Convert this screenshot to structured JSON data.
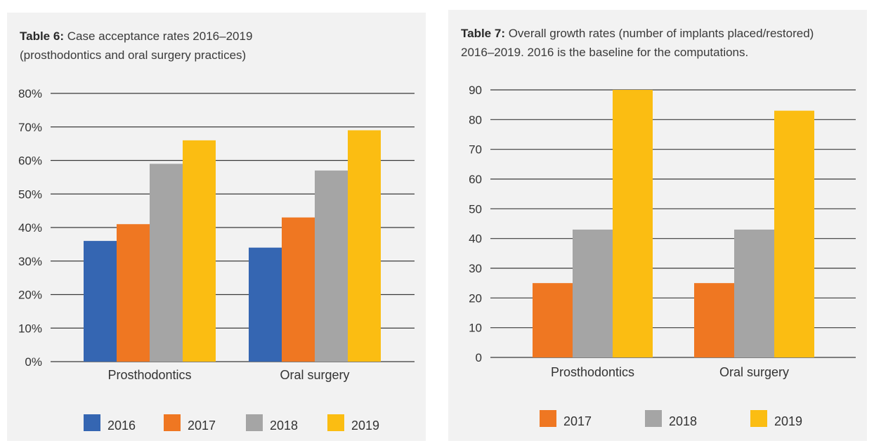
{
  "tables": [
    {
      "caption_bold": "Table 6:",
      "caption_line1": " Case acceptance rates 2016–2019",
      "caption_line2": "(prosthodontics and oral surgery practices)"
    },
    {
      "caption_bold": "Table 7:",
      "caption_line1": " Overall growth rates (number of implants placed/restored)",
      "caption_line2": "2016–2019. 2016 is the baseline for the computations."
    }
  ],
  "chart_data": [
    {
      "type": "bar",
      "title": "Table 6: Case acceptance rates 2016–2019 (prosthodontics and oral surgery practices)",
      "categories": [
        "Prosthodontics",
        "Oral surgery"
      ],
      "series": [
        {
          "name": "2016",
          "color": "#3566b2",
          "values": [
            36,
            34
          ]
        },
        {
          "name": "2017",
          "color": "#ef7722",
          "values": [
            41,
            43
          ]
        },
        {
          "name": "2018",
          "color": "#a5a5a5",
          "values": [
            59,
            57
          ]
        },
        {
          "name": "2019",
          "color": "#fbbd12",
          "values": [
            66,
            69
          ]
        }
      ],
      "yticks": [
        0,
        10,
        20,
        30,
        40,
        50,
        60,
        70,
        80
      ],
      "ytick_labels": [
        "0%",
        "10%",
        "20%",
        "30%",
        "40%",
        "50%",
        "60%",
        "70%",
        "80%"
      ],
      "ylim": [
        0,
        80
      ],
      "grid": true,
      "legend": "bottom"
    },
    {
      "type": "bar",
      "title": "Table 7: Overall growth rates (number of implants placed/restored) 2016–2019. 2016 is the baseline for the computations.",
      "categories": [
        "Prosthodontics",
        "Oral surgery"
      ],
      "series": [
        {
          "name": "2017",
          "color": "#ef7722",
          "values": [
            25,
            25
          ]
        },
        {
          "name": "2018",
          "color": "#a5a5a5",
          "values": [
            43,
            43
          ]
        },
        {
          "name": "2019",
          "color": "#fbbd12",
          "values": [
            90,
            83
          ]
        }
      ],
      "yticks": [
        0,
        10,
        20,
        30,
        40,
        50,
        60,
        70,
        80,
        90
      ],
      "ytick_labels": [
        "0",
        "10",
        "20",
        "30",
        "40",
        "50",
        "60",
        "70",
        "80",
        "90"
      ],
      "ylim": [
        0,
        90
      ],
      "grid": true,
      "legend": "bottom"
    }
  ]
}
